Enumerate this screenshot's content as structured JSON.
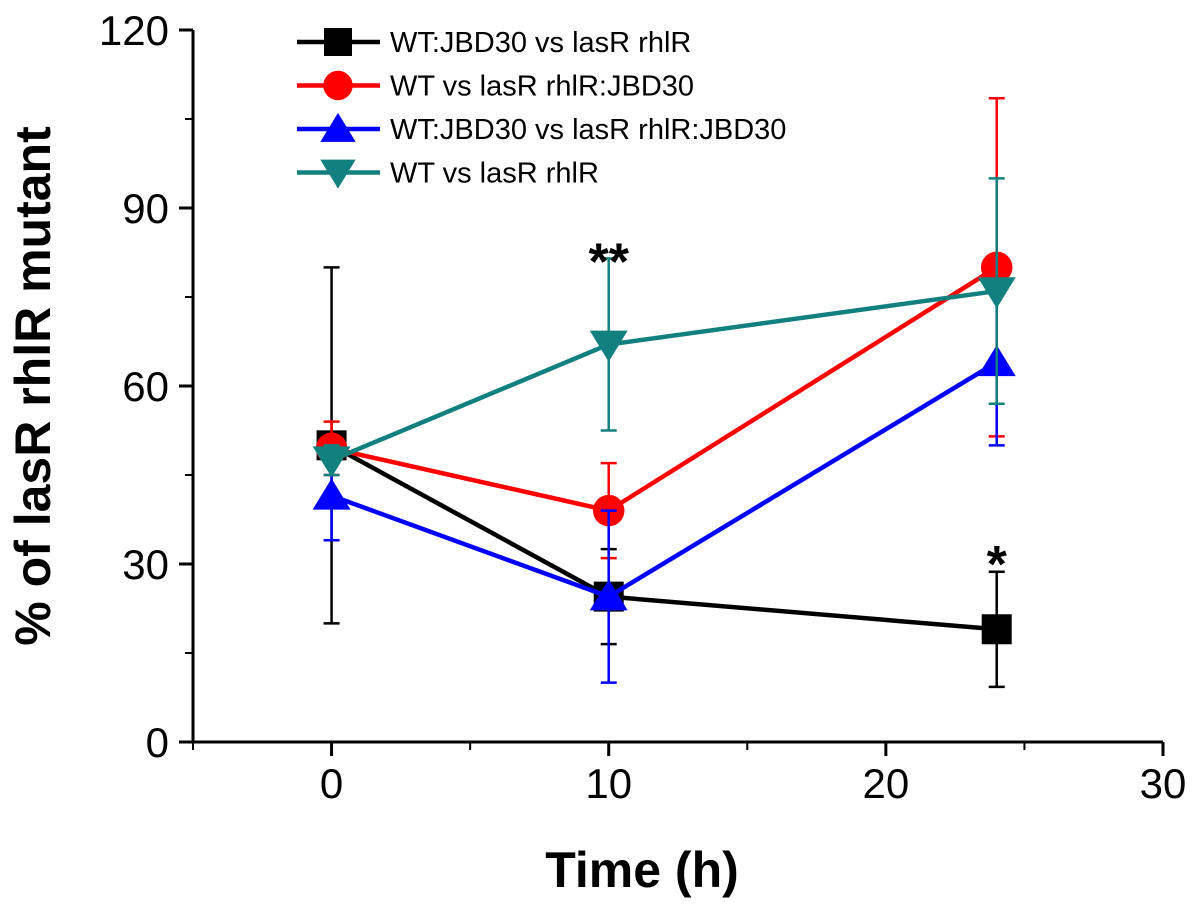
{
  "chart_data": {
    "type": "line",
    "xlabel": "Time (h)",
    "ylabel": "% of lasR rhlR mutant",
    "xlim": [
      -5,
      30
    ],
    "ylim": [
      0,
      120
    ],
    "x_ticks": [
      "0",
      "10",
      "20",
      "30"
    ],
    "y_ticks": [
      "0",
      "30",
      "60",
      "90",
      "120"
    ],
    "x_tick_values": [
      0,
      10,
      20,
      30
    ],
    "y_tick_values": [
      0,
      30,
      60,
      90,
      120
    ],
    "legend_position": "top-left",
    "series": [
      {
        "name": "WT:JBD30 vs lasR rhlR",
        "color": "#000000",
        "marker": "square",
        "x": [
          0,
          10,
          24
        ],
        "y": [
          50,
          24.5,
          19
        ],
        "err": [
          30,
          8,
          9.7
        ]
      },
      {
        "name": "WT vs lasR rhlR:JBD30",
        "color": "#ff0000",
        "marker": "circle",
        "x": [
          0,
          10,
          24
        ],
        "y": [
          49.5,
          39,
          80
        ],
        "err": [
          4.5,
          8,
          28.5
        ]
      },
      {
        "name": "WT:JBD30 vs lasR rhlR:JBD30",
        "color": "#0000ff",
        "marker": "triangle-up",
        "x": [
          0,
          10,
          24
        ],
        "y": [
          41.5,
          24.5,
          64
        ],
        "err": [
          7.5,
          14.5,
          14
        ]
      },
      {
        "name": "WT vs lasR rhlR",
        "color": "#138080",
        "marker": "triangle-down",
        "x": [
          0,
          10,
          24
        ],
        "y": [
          47.5,
          67,
          76
        ],
        "err": [
          2.5,
          14.5,
          19
        ]
      }
    ],
    "annotations": [
      {
        "text": "**",
        "x": 10,
        "y": 84
      },
      {
        "text": "*",
        "x": 24,
        "y": 33
      }
    ]
  }
}
